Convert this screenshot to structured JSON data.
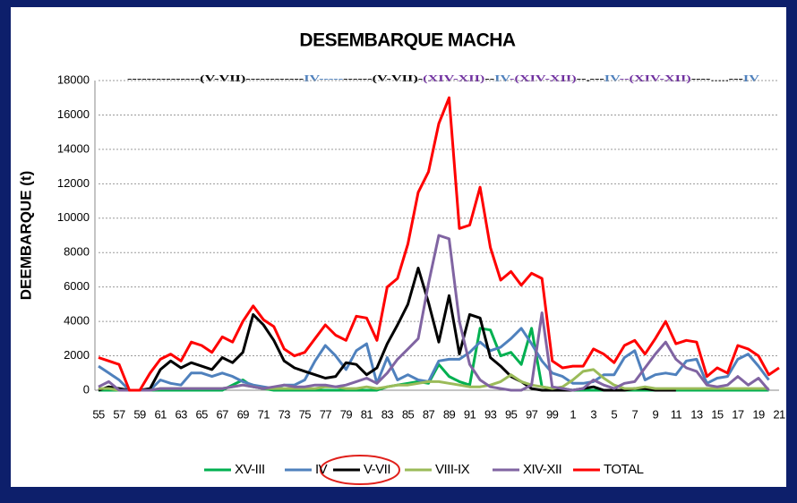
{
  "chart_data": {
    "type": "line",
    "title": "DESEMBARQUE MACHA",
    "y_label": "DEEMBARQUE (t)",
    "annotation": [
      {
        "text": "---------------(V-VII)------------",
        "color": "#000000"
      },
      {
        "text": "IV-----",
        "color": "#4f81bd"
      },
      {
        "text": "------(V-VII)-",
        "color": "#000000"
      },
      {
        "text": "(XIV-XII)",
        "color": "#7030a0"
      },
      {
        "text": "--",
        "color": "#000000"
      },
      {
        "text": "IV",
        "color": "#4f81bd"
      },
      {
        "text": "-(XIV-XII)",
        "color": "#7030a0"
      },
      {
        "text": "--.---",
        "color": "#000000"
      },
      {
        "text": "IV",
        "color": "#4f81bd"
      },
      {
        "text": "--(XIV-XII)",
        "color": "#7030a0"
      },
      {
        "text": "----.....---",
        "color": "#000000"
      },
      {
        "text": "IV",
        "color": "#4f81bd"
      }
    ],
    "categories": [
      "55",
      null,
      "57",
      null,
      "59",
      null,
      "61",
      null,
      "63",
      null,
      "65",
      null,
      "67",
      null,
      "69",
      null,
      "71",
      null,
      "73",
      null,
      "75",
      null,
      "77",
      null,
      "79",
      null,
      "81",
      null,
      "83",
      null,
      "85",
      null,
      "87",
      null,
      "89",
      null,
      "91",
      null,
      "93",
      null,
      "95",
      null,
      "97",
      null,
      "99",
      null,
      "1",
      null,
      "3",
      null,
      "5",
      null,
      "7",
      null,
      "9",
      null,
      "11",
      null,
      "13",
      null,
      "15",
      null,
      "17",
      null,
      "19",
      null,
      "21"
    ],
    "ylim": [
      0,
      18000
    ],
    "yticks": [
      0,
      2000,
      4000,
      6000,
      8000,
      10000,
      12000,
      14000,
      16000,
      18000
    ],
    "grid": true,
    "legend": "bottom",
    "series": [
      {
        "name": "XV-III",
        "color": "#00b050",
        "values": [
          0,
          0,
          0,
          0,
          0,
          0,
          0,
          0,
          0,
          0,
          0,
          0,
          0,
          300,
          600,
          200,
          100,
          0,
          0,
          0,
          0,
          0,
          0,
          0,
          0,
          0,
          0,
          0,
          200,
          300,
          400,
          500,
          400,
          1500,
          800,
          500,
          300,
          3600,
          3500,
          2000,
          2200,
          1500,
          3600,
          200,
          100,
          100,
          0,
          0,
          0,
          0,
          0,
          0,
          0,
          0,
          0,
          0,
          0,
          0,
          0,
          0,
          0,
          0,
          0,
          0,
          0,
          0,
          null
        ]
      },
      {
        "name": "IV",
        "color": "#4f81bd",
        "values": [
          1400,
          1000,
          600,
          0,
          0,
          0,
          600,
          400,
          300,
          1000,
          1000,
          800,
          1000,
          800,
          500,
          300,
          200,
          100,
          300,
          300,
          600,
          1700,
          2600,
          2000,
          1200,
          2300,
          2700,
          400,
          1900,
          600,
          900,
          600,
          500,
          1700,
          1800,
          1800,
          2200,
          2800,
          2300,
          2500,
          3000,
          3600,
          2700,
          1700,
          1000,
          800,
          400,
          400,
          500,
          900,
          900,
          1900,
          2300,
          600,
          900,
          1000,
          900,
          1700,
          1800,
          400,
          700,
          800,
          1800,
          2100,
          1400,
          600,
          null
        ]
      },
      {
        "name": "V-VII",
        "color": "#000000",
        "values": [
          0,
          200,
          100,
          0,
          0,
          100,
          1200,
          1700,
          1300,
          1600,
          1400,
          1200,
          1900,
          1600,
          2200,
          4400,
          3800,
          2900,
          1700,
          1300,
          1100,
          900,
          700,
          800,
          1600,
          1500,
          900,
          1300,
          2700,
          3800,
          5000,
          7100,
          5100,
          2800,
          5500,
          2100,
          4400,
          4200,
          1900,
          1400,
          800,
          500,
          100,
          0,
          0,
          0,
          0,
          100,
          200,
          0,
          0,
          0,
          100,
          100,
          0,
          0,
          0,
          null,
          null,
          null,
          null,
          null,
          null,
          null,
          null,
          null,
          null
        ]
      },
      {
        "name": "VIII-IX",
        "color": "#9bbb59",
        "values": [
          100,
          100,
          0,
          0,
          0,
          0,
          100,
          100,
          100,
          100,
          100,
          100,
          100,
          200,
          300,
          200,
          100,
          100,
          100,
          100,
          100,
          100,
          200,
          200,
          100,
          100,
          200,
          100,
          200,
          300,
          300,
          400,
          500,
          500,
          400,
          300,
          200,
          200,
          300,
          500,
          900,
          500,
          300,
          200,
          100,
          200,
          600,
          1100,
          1200,
          700,
          300,
          100,
          100,
          200,
          100,
          100,
          100,
          100,
          100,
          100,
          100,
          100,
          100,
          100,
          100,
          100,
          null
        ]
      },
      {
        "name": "XIV-XII",
        "color": "#8064a2",
        "values": [
          200,
          500,
          0,
          0,
          0,
          0,
          100,
          100,
          100,
          100,
          100,
          100,
          100,
          200,
          300,
          200,
          100,
          200,
          300,
          200,
          200,
          300,
          300,
          200,
          300,
          500,
          700,
          400,
          1000,
          1800,
          2400,
          3000,
          6200,
          9000,
          8800,
          4000,
          1500,
          600,
          200,
          100,
          0,
          0,
          300,
          4500,
          200,
          100,
          0,
          100,
          600,
          300,
          100,
          400,
          500,
          1300,
          2100,
          2800,
          1800,
          1300,
          1100,
          300,
          200,
          300,
          800,
          300,
          700,
          0,
          null
        ]
      },
      {
        "name": "TOTAL",
        "color": "#ff0000",
        "values": [
          1900,
          1700,
          1500,
          0,
          0,
          1000,
          1800,
          2100,
          1700,
          2800,
          2600,
          2200,
          3100,
          2800,
          4000,
          4900,
          4100,
          3700,
          2400,
          2000,
          2200,
          3000,
          3800,
          3200,
          2900,
          4300,
          4200,
          2900,
          6000,
          6500,
          8500,
          11500,
          12700,
          15500,
          17000,
          9400,
          9600,
          11800,
          8300,
          6400,
          6900,
          6100,
          6800,
          6500,
          1700,
          1300,
          1400,
          1400,
          2400,
          2100,
          1600,
          2600,
          2900,
          2100,
          3000,
          4000,
          2700,
          2900,
          2800,
          800,
          1300,
          1000,
          2600,
          2400,
          2000,
          900,
          1300
        ]
      }
    ]
  }
}
